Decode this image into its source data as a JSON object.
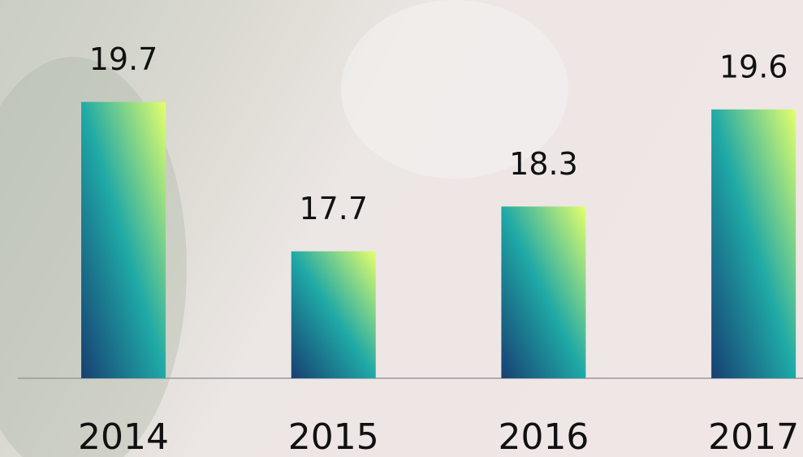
{
  "chart_data": {
    "type": "bar",
    "categories": [
      "2014",
      "2015",
      "2016",
      "2017"
    ],
    "values": [
      19.7,
      17.7,
      18.3,
      19.6
    ],
    "gradient_colors": [
      "#173f72",
      "#1fa9a6",
      "#e4ff6c"
    ],
    "ylim": [
      16,
      21
    ]
  }
}
